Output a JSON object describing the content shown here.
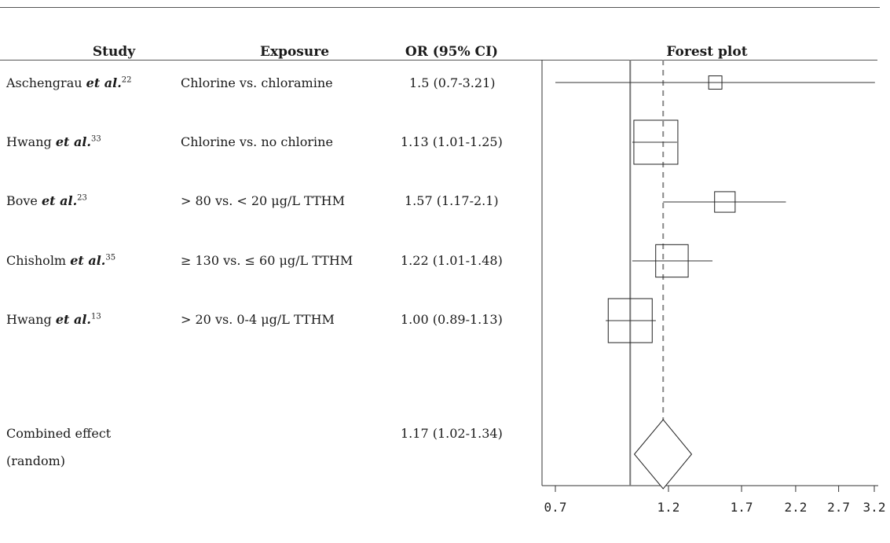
{
  "headers": {
    "study": "Study",
    "exposure": "Exposure",
    "or_ci": "OR (95% CI)",
    "forest_plot": "Forest plot"
  },
  "rows": [
    {
      "study": "Aschengrau",
      "etal": "et al.",
      "ref": "22",
      "exposure": "Chlorine vs. chloramine",
      "or_ci": "1.5  (0.7-3.21)"
    },
    {
      "study": "Hwang",
      "etal": "et al.",
      "ref": "33",
      "exposure": "Chlorine vs. no chlorine",
      "or_ci": "1.13  (1.01-1.25)"
    },
    {
      "study": "Bove",
      "etal": "et al.",
      "ref": "23",
      "exposure": "> 80 vs. < 20 μg/L TTHM",
      "or_ci": "1.57  (1.17-2.1)"
    },
    {
      "study": "Chisholm",
      "etal": "et al.",
      "ref": "35",
      "exposure": "≥ 130 vs. ≤ 60 μg/L TTHM",
      "or_ci": "1.22  (1.01-1.48)"
    },
    {
      "study": "Hwang",
      "etal": "et al.",
      "ref": "13",
      "exposure": "> 20 vs. 0-4 μg/L TTHM",
      "or_ci": "1.00  (0.89-1.13)"
    }
  ],
  "combined": {
    "label_line1": "Combined effect",
    "label_line2": "(random)",
    "or_ci": "1.17  (1.02-1.34)"
  },
  "chart_data": {
    "type": "forest",
    "x_scale": "log",
    "xlim": [
      0.7,
      3.2
    ],
    "x_ticks": [
      "0.7",
      "1.2",
      "1.7",
      "2.2",
      "2.7",
      "3.2"
    ],
    "null_line": 1.0,
    "pooled_line": 1.17,
    "studies": [
      {
        "or": 1.5,
        "lo": 0.7,
        "hi": 3.21,
        "weight": 0.05
      },
      {
        "or": 1.13,
        "lo": 1.01,
        "hi": 1.25,
        "weight": 0.55
      },
      {
        "or": 1.57,
        "lo": 1.17,
        "hi": 2.1,
        "weight": 0.12
      },
      {
        "or": 1.22,
        "lo": 1.01,
        "hi": 1.48,
        "weight": 0.3
      },
      {
        "or": 1.0,
        "lo": 0.89,
        "hi": 1.13,
        "weight": 0.55
      }
    ],
    "pooled": {
      "or": 1.17,
      "lo": 1.02,
      "hi": 1.34
    }
  }
}
